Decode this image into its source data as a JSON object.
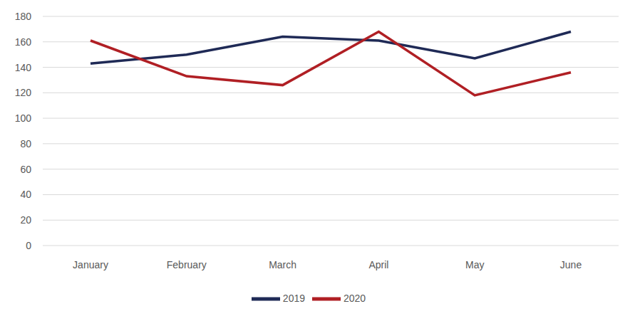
{
  "chart_data": {
    "type": "line",
    "categories": [
      "January",
      "February",
      "March",
      "April",
      "May",
      "June"
    ],
    "series": [
      {
        "name": "2019",
        "color": "#1f2a56",
        "values": [
          143,
          150,
          164,
          161,
          147,
          168
        ]
      },
      {
        "name": "2020",
        "color": "#b01f24",
        "values": [
          161,
          133,
          126,
          168,
          118,
          136
        ]
      }
    ],
    "ylim": [
      0,
      180
    ],
    "yticks": [
      0,
      20,
      40,
      60,
      80,
      100,
      120,
      140,
      160,
      180
    ],
    "grid": true,
    "legend": "bottom"
  }
}
